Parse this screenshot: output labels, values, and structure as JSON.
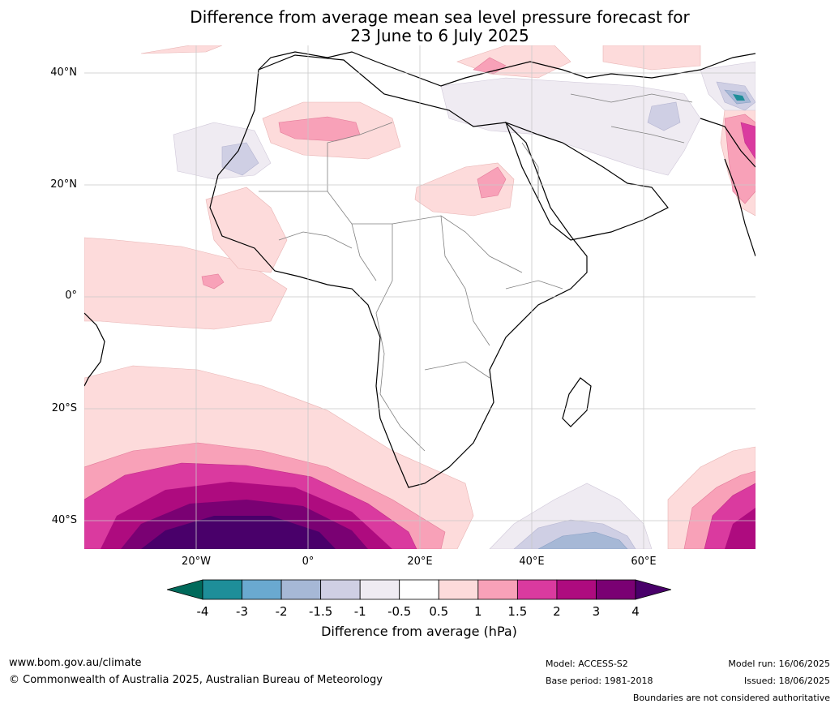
{
  "title": {
    "line1": "Difference from average mean sea level pressure forecast for",
    "line2": "23 June to 6 July 2025"
  },
  "map": {
    "lat_labels": [
      "40°N",
      "20°N",
      "0°",
      "20°S",
      "40°S"
    ],
    "lon_labels": [
      "20°W",
      "0°",
      "20°E",
      "40°E",
      "60°E"
    ],
    "icon": "africa-map"
  },
  "colorbar": {
    "ticks": [
      "-4",
      "-3",
      "-2",
      "-1.5",
      "-1",
      "-0.5",
      "0.5",
      "1",
      "1.5",
      "2",
      "3",
      "4"
    ],
    "colors": [
      "#006a5b",
      "#1e8e99",
      "#6aa9d0",
      "#a6b8d6",
      "#cfcfe4",
      "#efebf2",
      "#ffffff",
      "#fddbdb",
      "#f8a1b8",
      "#da3a9f",
      "#ae0b7f",
      "#7a0173",
      "#49006a"
    ],
    "label": "Difference from average (hPa)"
  },
  "footer": {
    "website": "www.bom.gov.au/climate",
    "copyright": "© Commonwealth of Australia 2025, Australian Bureau of Meteorology",
    "model": "Model: ACCESS-S2",
    "base_period": "Base period: 1981-2018",
    "model_run": "Model run: 16/06/2025",
    "issued": "Issued: 18/06/2025",
    "disclaimer": "Boundaries are not considered authoritative"
  }
}
